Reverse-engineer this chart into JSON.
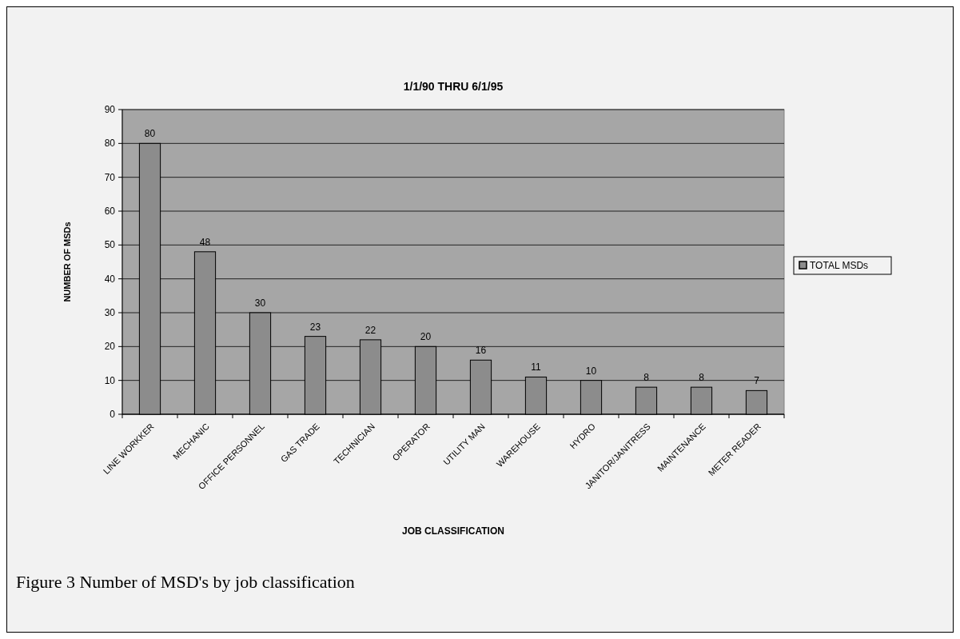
{
  "chart_data": {
    "type": "bar",
    "title": "1/1/90 THRU 6/1/95",
    "xlabel": "JOB CLASSIFICATION",
    "ylabel": "NUMBER OF MSDs",
    "categories": [
      "LINE WORKKER",
      "MECHANIC",
      "OFFICE PERSONNEL",
      "GAS TRADE",
      "TECHNICIAN",
      "OPERATOR",
      "UTILITY MAN",
      "WAREHOUSE",
      "HYDRO",
      "JANITOR/JANITRESS",
      "MAINTENANCE",
      "METER READER"
    ],
    "series": [
      {
        "name": "TOTAL MSDs",
        "color": "#8c8c8c",
        "values": [
          80,
          48,
          30,
          23,
          22,
          20,
          16,
          11,
          10,
          8,
          8,
          7
        ]
      }
    ],
    "ylim": [
      0,
      90
    ],
    "yticks": [
      0,
      10,
      20,
      30,
      40,
      50,
      60,
      70,
      80,
      90
    ],
    "grid": "y",
    "legend": "right",
    "data_labels": true,
    "annotations": [
      "Figure 3 Number of MSD's by job classification"
    ]
  }
}
